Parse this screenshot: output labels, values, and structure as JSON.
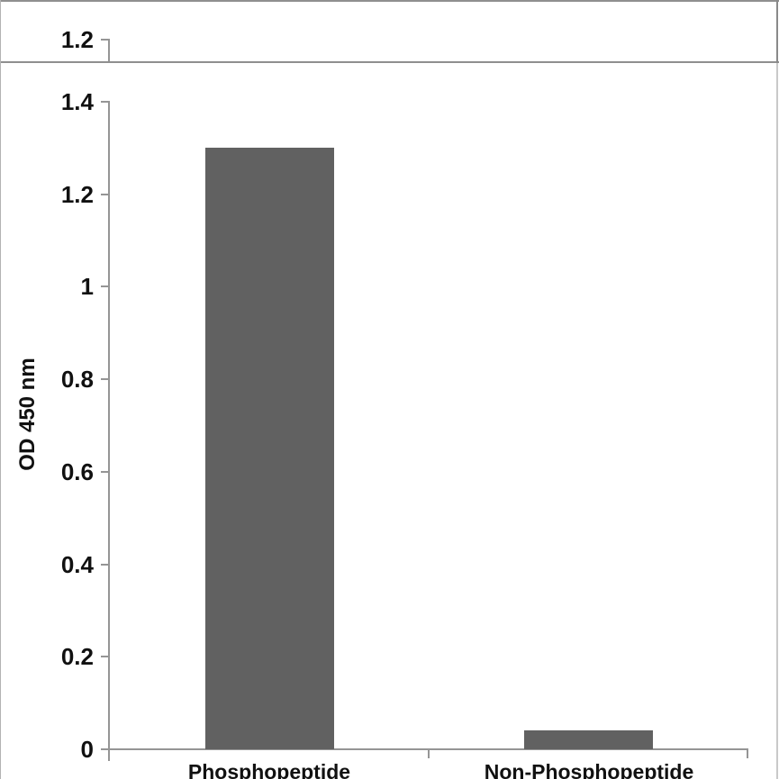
{
  "top_strip": {
    "tick_label": "1.2"
  },
  "chart_data": {
    "type": "bar",
    "categories": [
      "Phosphopeptide",
      "Non-Phosphopeptide"
    ],
    "values": [
      1.3,
      0.04
    ],
    "title": "",
    "xlabel": "",
    "ylabel": "OD 450 nm",
    "ylim": [
      0,
      1.4
    ],
    "ytick_step": 0.2,
    "yticks": [
      "1.4",
      "1.2",
      "1",
      "0.8",
      "0.6",
      "0.4",
      "0.2",
      "0"
    ],
    "grid": false,
    "legend_position": "none",
    "bar_color": "#616161",
    "axis_color": "#959595",
    "text_color": "#111111"
  },
  "frame": {
    "border_dark": "#8f8f8f",
    "border_light": "#c9c9c9",
    "border_left": "#b3b3b3"
  }
}
